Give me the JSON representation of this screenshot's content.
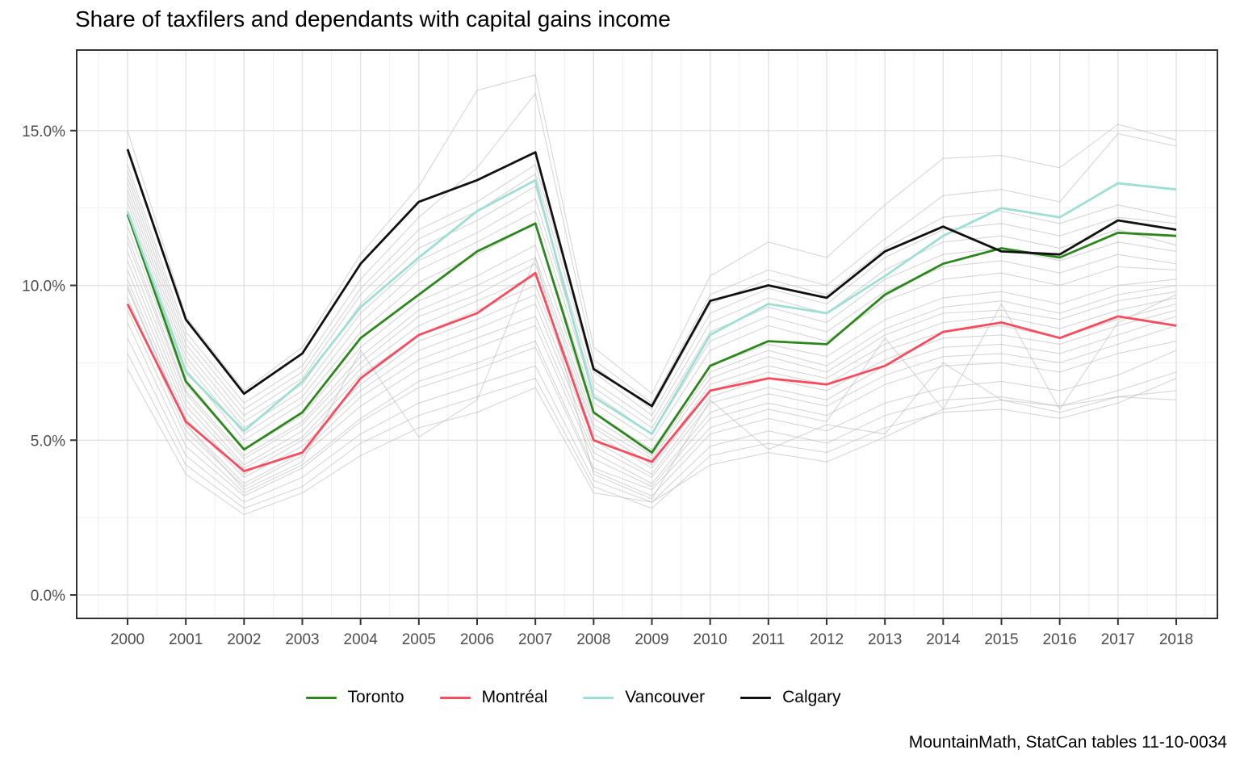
{
  "title": "Share of taxfilers and dependants with capital gains income",
  "caption": "MountainMath, StatCan tables 11-10-0034",
  "colors": {
    "toronto": "#2c871c",
    "montreal": "#f94b5e",
    "vancouver": "#9fdfd3",
    "calgary": "#111111",
    "background_line": "#bbbbbb",
    "grid_major": "#e2e2e2",
    "grid_minor": "#f0f0f0",
    "panel_border": "#333333",
    "axis_text": "#4d4d4d"
  },
  "chart_data": {
    "type": "line",
    "x": [
      2000,
      2001,
      2002,
      2003,
      2004,
      2005,
      2006,
      2007,
      2008,
      2009,
      2010,
      2011,
      2012,
      2013,
      2014,
      2015,
      2016,
      2017,
      2018
    ],
    "x_tick_labels": [
      "2000",
      "2001",
      "2002",
      "2003",
      "2004",
      "2005",
      "2006",
      "2007",
      "2008",
      "2009",
      "2010",
      "2011",
      "2012",
      "2013",
      "2014",
      "2015",
      "2016",
      "2017",
      "2018"
    ],
    "y_ticks": [
      0,
      5,
      10,
      15
    ],
    "y_tick_labels": [
      "0.0%",
      "5.0%",
      "10.0%",
      "15.0%"
    ],
    "y_minor_ticks": [
      2.5,
      7.5,
      12.5,
      17.5
    ],
    "ylim": [
      0,
      17.6
    ],
    "ylabel": "",
    "xlabel": "",
    "grid": "major and minor, light gray on white",
    "legend_position": "bottom",
    "series": [
      {
        "name": "Toronto",
        "color": "#2c871c",
        "values": [
          12.3,
          6.9,
          4.7,
          5.9,
          8.3,
          9.7,
          11.1,
          12.0,
          5.9,
          4.6,
          7.4,
          8.2,
          8.1,
          9.7,
          10.7,
          11.2,
          10.9,
          11.7,
          11.6
        ]
      },
      {
        "name": "Montréal",
        "color": "#f94b5e",
        "values": [
          9.4,
          5.6,
          4.0,
          4.6,
          7.0,
          8.4,
          9.1,
          10.4,
          5.0,
          4.3,
          6.6,
          7.0,
          6.8,
          7.4,
          8.5,
          8.8,
          8.3,
          9.0,
          8.7
        ]
      },
      {
        "name": "Vancouver",
        "color": "#9fdfd3",
        "values": [
          12.4,
          7.2,
          5.3,
          6.9,
          9.3,
          10.9,
          12.4,
          13.4,
          6.4,
          5.2,
          8.4,
          9.4,
          9.1,
          10.3,
          11.6,
          12.5,
          12.2,
          13.3,
          13.1
        ]
      },
      {
        "name": "Calgary",
        "color": "#111111",
        "values": [
          14.4,
          8.9,
          6.5,
          7.8,
          10.7,
          12.7,
          13.4,
          14.3,
          7.3,
          6.1,
          9.5,
          10.0,
          9.6,
          11.1,
          11.9,
          11.1,
          11.0,
          12.1,
          11.8
        ]
      }
    ],
    "background_series": [
      {
        "values": [
          15.0,
          9.0,
          6.6,
          8.0,
          11.0,
          13.2,
          16.3,
          16.8,
          8.0,
          6.5,
          10.3,
          11.4,
          10.9,
          12.6,
          14.1,
          14.2,
          13.8,
          15.2,
          14.7
        ]
      },
      {
        "values": [
          13.9,
          8.5,
          6.2,
          7.4,
          10.2,
          12.2,
          13.8,
          16.2,
          7.6,
          6.2,
          9.7,
          10.5,
          10.0,
          11.5,
          12.9,
          13.1,
          12.7,
          14.9,
          14.5
        ]
      },
      {
        "values": [
          13.7,
          8.3,
          6.0,
          7.2,
          9.9,
          11.8,
          12.7,
          13.9,
          7.4,
          6.0,
          9.4,
          10.2,
          9.7,
          11.2,
          12.2,
          12.4,
          12.0,
          12.6,
          12.2
        ]
      },
      {
        "values": [
          13.5,
          8.1,
          5.8,
          7.0,
          9.7,
          11.5,
          12.4,
          13.6,
          7.2,
          5.8,
          9.1,
          9.9,
          9.4,
          10.9,
          11.8,
          12.0,
          11.6,
          12.2,
          12.0
        ]
      },
      {
        "values": [
          13.3,
          7.9,
          5.6,
          6.8,
          9.4,
          11.2,
          12.1,
          13.2,
          6.9,
          5.6,
          8.8,
          9.6,
          9.1,
          10.5,
          11.4,
          11.6,
          11.2,
          11.8,
          11.3
        ]
      },
      {
        "values": [
          13.1,
          7.7,
          5.4,
          6.6,
          9.1,
          10.8,
          11.7,
          12.8,
          6.7,
          5.4,
          8.5,
          9.3,
          8.8,
          10.2,
          11.0,
          11.2,
          10.8,
          11.4,
          11.1
        ]
      },
      {
        "values": [
          12.9,
          7.5,
          5.2,
          6.4,
          8.8,
          10.5,
          11.4,
          12.4,
          6.5,
          5.2,
          8.2,
          9.0,
          8.5,
          9.8,
          10.6,
          10.8,
          10.4,
          11.0,
          10.7
        ]
      },
      {
        "values": [
          12.7,
          7.3,
          5.0,
          6.2,
          8.5,
          10.1,
          11.0,
          12.0,
          6.2,
          5.0,
          7.9,
          8.7,
          8.2,
          9.5,
          10.2,
          10.4,
          10.0,
          10.6,
          10.5
        ]
      },
      {
        "values": [
          11.9,
          6.8,
          4.7,
          5.8,
          8.0,
          9.5,
          10.3,
          11.3,
          5.9,
          4.7,
          7.4,
          8.1,
          7.7,
          8.9,
          9.6,
          9.8,
          9.4,
          10.0,
          10.2
        ]
      },
      {
        "values": [
          11.6,
          6.6,
          4.5,
          5.6,
          7.7,
          9.2,
          10.0,
          10.9,
          5.7,
          4.5,
          7.2,
          7.9,
          7.4,
          8.6,
          9.3,
          9.5,
          9.1,
          9.7,
          10.0
        ]
      },
      {
        "values": [
          11.4,
          6.5,
          4.4,
          5.5,
          7.5,
          9.0,
          9.7,
          10.7,
          5.5,
          4.4,
          7.0,
          7.7,
          7.2,
          8.4,
          9.1,
          9.2,
          8.9,
          9.5,
          9.8
        ]
      },
      {
        "values": [
          11.1,
          6.3,
          4.2,
          5.3,
          7.3,
          8.7,
          9.5,
          10.3,
          5.4,
          4.2,
          6.8,
          7.4,
          7.0,
          8.1,
          8.8,
          9.0,
          8.6,
          9.2,
          9.6
        ]
      },
      {
        "values": [
          10.8,
          6.1,
          4.1,
          5.1,
          7.1,
          8.4,
          9.2,
          10.0,
          5.2,
          4.1,
          6.6,
          7.2,
          6.8,
          7.9,
          8.5,
          8.7,
          8.3,
          8.9,
          9.4
        ]
      },
      {
        "values": [
          10.5,
          5.9,
          3.9,
          5.0,
          6.8,
          8.2,
          8.9,
          9.7,
          5.0,
          3.9,
          6.4,
          7.0,
          6.6,
          7.6,
          8.3,
          8.4,
          8.1,
          8.7,
          9.2
        ]
      },
      {
        "values": [
          10.2,
          5.7,
          3.8,
          4.8,
          6.6,
          7.9,
          8.6,
          9.4,
          4.8,
          3.8,
          6.2,
          6.7,
          6.3,
          7.4,
          8.0,
          8.1,
          7.8,
          8.4,
          9.0
        ]
      },
      {
        "values": [
          9.9,
          5.5,
          3.6,
          4.6,
          6.4,
          7.6,
          8.3,
          9.0,
          4.6,
          3.6,
          5.9,
          6.5,
          6.1,
          7.1,
          7.7,
          7.8,
          7.5,
          8.1,
          8.7
        ]
      },
      {
        "values": [
          9.6,
          5.3,
          3.5,
          4.5,
          6.1,
          7.3,
          8.0,
          8.7,
          4.4,
          3.5,
          5.7,
          6.2,
          5.8,
          6.8,
          7.4,
          7.5,
          7.2,
          7.8,
          8.2
        ]
      },
      {
        "values": [
          9.2,
          5.1,
          3.3,
          4.2,
          5.7,
          6.9,
          7.5,
          8.2,
          4.1,
          3.4,
          5.4,
          6.0,
          5.6,
          8.3,
          6.0,
          9.4,
          6.0,
          8.8,
          9.7
        ]
      },
      {
        "values": [
          8.8,
          4.8,
          3.2,
          4.1,
          5.6,
          6.7,
          7.3,
          8.0,
          4.0,
          3.2,
          5.2,
          5.7,
          5.3,
          6.2,
          6.7,
          6.9,
          6.6,
          7.1,
          7.9
        ]
      },
      {
        "values": [
          8.3,
          4.5,
          3.0,
          3.8,
          5.2,
          6.2,
          6.8,
          7.4,
          3.7,
          3.0,
          4.8,
          5.3,
          4.9,
          5.8,
          6.3,
          6.4,
          6.1,
          6.6,
          7.2
        ]
      },
      {
        "values": [
          10.0,
          5.5,
          3.4,
          4.3,
          7.9,
          5.1,
          6.3,
          10.9,
          3.9,
          3.1,
          6.3,
          4.7,
          5.5,
          5.2,
          7.5,
          6.3,
          6.1,
          6.4,
          6.6
        ]
      },
      {
        "values": [
          7.8,
          4.2,
          2.8,
          3.5,
          4.9,
          5.8,
          6.4,
          7.0,
          3.5,
          2.8,
          4.5,
          4.9,
          4.6,
          5.4,
          5.9,
          6.0,
          5.7,
          6.2,
          7.0
        ]
      },
      {
        "values": [
          7.3,
          3.9,
          2.6,
          3.3,
          4.5,
          5.4,
          5.9,
          6.7,
          3.3,
          3.0,
          4.2,
          4.6,
          4.3,
          5.1,
          6.0,
          6.3,
          5.9,
          6.4,
          6.3
        ]
      }
    ]
  }
}
